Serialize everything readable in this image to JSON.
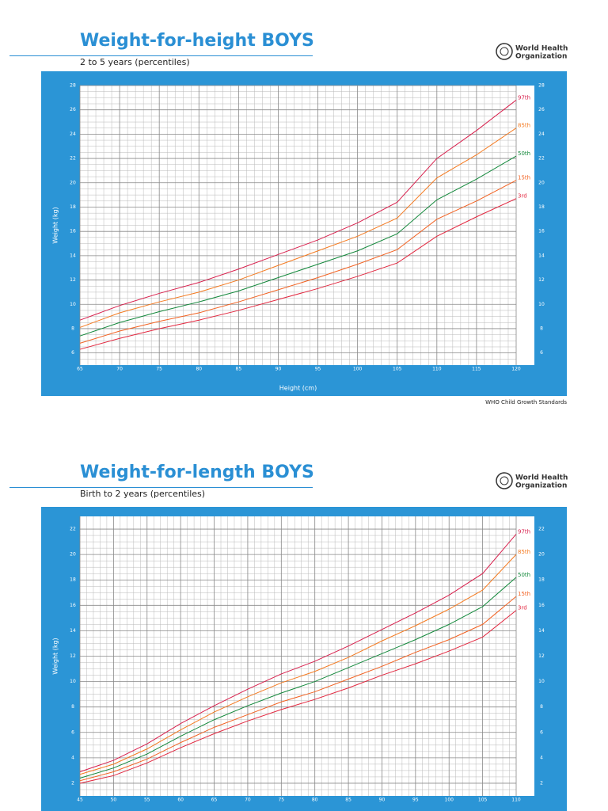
{
  "logo": {
    "line1": "World Health",
    "line2": "Organization"
  },
  "chart_data": [
    {
      "type": "line",
      "title": "Weight-for-height BOYS",
      "subtitle": "2 to 5 years (percentiles)",
      "x_label": "Height (cm)",
      "y_label": "Weight (kg)",
      "source": "WHO Child Growth Standards",
      "x": [
        65,
        70,
        75,
        80,
        85,
        90,
        95,
        100,
        105,
        110,
        115,
        120
      ],
      "xlim": [
        65,
        120
      ],
      "xticks": [
        65,
        70,
        75,
        80,
        85,
        90,
        95,
        100,
        105,
        110,
        115,
        120
      ],
      "ylim": [
        5,
        28
      ],
      "yticks": [
        6,
        8,
        10,
        12,
        14,
        16,
        18,
        20,
        22,
        24,
        26,
        28
      ],
      "grid": true,
      "series": [
        {
          "name": "97th",
          "color": "#d81f4c",
          "values": [
            8.7,
            9.9,
            10.9,
            11.8,
            12.9,
            14.1,
            15.3,
            16.7,
            18.4,
            22.0,
            24.3,
            26.8
          ]
        },
        {
          "name": "85th",
          "color": "#f47a20",
          "values": [
            8.1,
            9.3,
            10.2,
            11.0,
            12.0,
            13.2,
            14.4,
            15.6,
            17.1,
            20.4,
            22.3,
            24.5
          ]
        },
        {
          "name": "50th",
          "color": "#13883b",
          "values": [
            7.4,
            8.5,
            9.4,
            10.2,
            11.1,
            12.2,
            13.3,
            14.4,
            15.8,
            18.6,
            20.3,
            22.2
          ]
        },
        {
          "name": "15th",
          "color": "#f26222",
          "values": [
            6.8,
            7.8,
            8.6,
            9.3,
            10.2,
            11.2,
            12.2,
            13.3,
            14.5,
            17.0,
            18.5,
            20.2
          ]
        },
        {
          "name": "3rd",
          "color": "#e2273f",
          "values": [
            6.3,
            7.2,
            8.0,
            8.7,
            9.5,
            10.4,
            11.3,
            12.3,
            13.4,
            15.6,
            17.2,
            18.7
          ]
        }
      ]
    },
    {
      "type": "line",
      "title": "Weight-for-length BOYS",
      "subtitle": "Birth to 2 years (percentiles)",
      "y_label": "Weight (kg)",
      "x": [
        45,
        50,
        55,
        60,
        65,
        70,
        75,
        80,
        85,
        90,
        95,
        100,
        105,
        110
      ],
      "xlim": [
        45,
        110
      ],
      "xticks": [
        45,
        50,
        55,
        60,
        65,
        70,
        75,
        80,
        85,
        90,
        95,
        100,
        105,
        110
      ],
      "ylim": [
        1,
        23
      ],
      "yticks": [
        2,
        4,
        6,
        8,
        10,
        12,
        14,
        16,
        18,
        20,
        22
      ],
      "grid": true,
      "series": [
        {
          "name": "97th",
          "color": "#d81f4c",
          "values": [
            2.9,
            3.8,
            5.1,
            6.7,
            8.1,
            9.4,
            10.6,
            11.6,
            12.8,
            14.1,
            15.4,
            16.8,
            18.5,
            21.6
          ]
        },
        {
          "name": "85th",
          "color": "#f47a20",
          "values": [
            2.7,
            3.5,
            4.7,
            6.2,
            7.6,
            8.8,
            9.9,
            10.8,
            11.9,
            13.2,
            14.4,
            15.7,
            17.2,
            20.0
          ]
        },
        {
          "name": "50th",
          "color": "#13883b",
          "values": [
            2.4,
            3.2,
            4.3,
            5.7,
            7.0,
            8.1,
            9.1,
            10.0,
            11.1,
            12.2,
            13.3,
            14.5,
            15.9,
            18.2
          ]
        },
        {
          "name": "15th",
          "color": "#f26222",
          "values": [
            2.2,
            2.9,
            3.9,
            5.2,
            6.4,
            7.4,
            8.4,
            9.2,
            10.2,
            11.2,
            12.3,
            13.3,
            14.5,
            16.7
          ]
        },
        {
          "name": "3rd",
          "color": "#e2273f",
          "values": [
            2.0,
            2.6,
            3.6,
            4.8,
            5.9,
            6.9,
            7.8,
            8.6,
            9.5,
            10.5,
            11.4,
            12.4,
            13.5,
            15.6
          ]
        }
      ]
    }
  ]
}
